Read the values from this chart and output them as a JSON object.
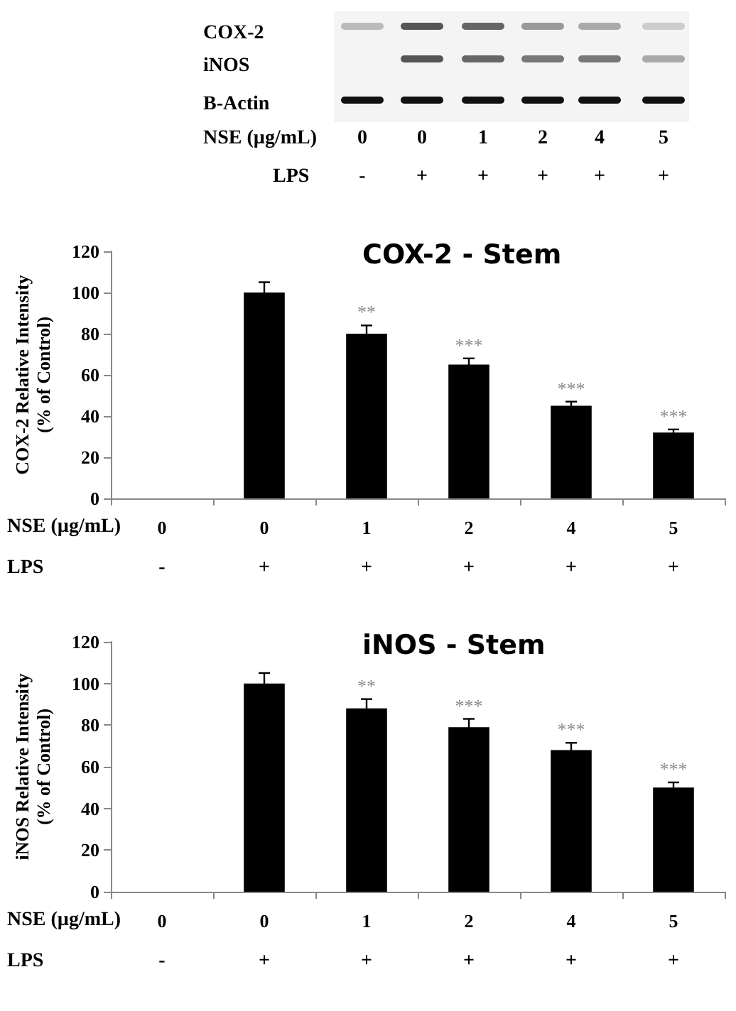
{
  "chart_data": [
    {
      "type": "other",
      "annotations": [
        "COX-2",
        "iNOS",
        "B-Actin",
        "NSE (µg/mL)",
        "0",
        "0",
        "1",
        "2",
        "4",
        "5",
        "LPS",
        "-",
        "+",
        "+",
        "+",
        "+",
        "+"
      ]
    },
    {
      "type": "bar",
      "title": "COX-2 - Stem",
      "ylabel": "COX-2 Relative Intensity\n(% of Control)",
      "xlabel": "NSE (µg/mL)",
      "categories": [
        "0",
        "0",
        "1",
        "2",
        "4",
        "5"
      ],
      "values": [
        0,
        100,
        80,
        65,
        45,
        32
      ],
      "errors": [
        null,
        5,
        4,
        3,
        2,
        1.5
      ],
      "color": "#000000",
      "ylim": [
        0,
        120
      ],
      "yticks": [
        0,
        20,
        40,
        60,
        80,
        100,
        120
      ],
      "annotations": [
        "LPS",
        "-",
        "+",
        "+",
        "+",
        "+",
        "+",
        "**",
        "***",
        "***",
        "***"
      ]
    },
    {
      "type": "bar",
      "title": "iNOS - Stem",
      "ylabel": "iNOS Relative Intensity\n(% of Control)",
      "xlabel": "NSE (µg/mL)",
      "categories": [
        "0",
        "0",
        "1",
        "2",
        "4",
        "5"
      ],
      "values": [
        0,
        100,
        88,
        79,
        68,
        50
      ],
      "errors": [
        null,
        5,
        4.5,
        4,
        3.5,
        2.5
      ],
      "color": "#000000",
      "ylim": [
        0,
        120
      ],
      "yticks": [
        0,
        20,
        40,
        60,
        80,
        100,
        120
      ],
      "annotations": [
        "LPS",
        "-",
        "+",
        "+",
        "+",
        "+",
        "+",
        "**",
        "***",
        "***",
        "***"
      ]
    }
  ]
}
